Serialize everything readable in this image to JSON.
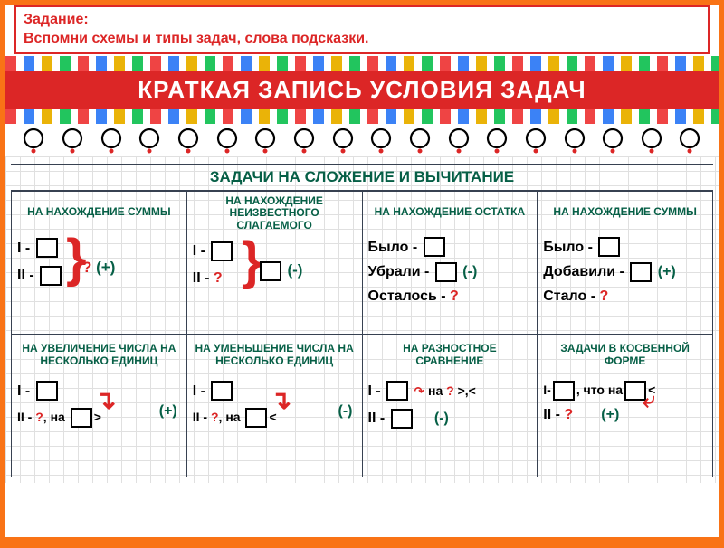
{
  "colors": {
    "red": "#dc2626",
    "green": "#065f46",
    "black": "#000",
    "orange": "#f97316"
  },
  "instruction": {
    "title": "Задание:",
    "text": "Вспомни схемы и типы задач, слова подсказки."
  },
  "poster_title": "КРАТКАЯ ЗАПИСЬ УСЛОВИЯ ЗАДАЧ",
  "section_title": "ЗАДАЧИ НА СЛОЖЕНИЕ И ВЫЧИТАНИЕ",
  "cells": [
    {
      "h": "НА НАХОЖДЕНИЕ СУММЫ",
      "l1": "I -",
      "l2": "II -",
      "brace_q": "?",
      "brace_op": "(+)"
    },
    {
      "h": "НА НАХОЖДЕНИЕ НЕИЗВЕСТНОГО СЛАГАЕМОГО",
      "l1": "I -",
      "l2": "II - ?",
      "brace_q": "",
      "brace_op": "(-)"
    },
    {
      "h": "НА НАХОЖДЕНИЕ ОСТАТКА",
      "r1": "Было -",
      "r2": "Убрали -",
      "r2op": "(-)",
      "r3": "Осталось - ?"
    },
    {
      "h": "НА НАХОЖДЕНИЕ СУММЫ",
      "r1": "Было -",
      "r2": "Добавили -",
      "r2op": "(+)",
      "r3": "Стало - ?"
    },
    {
      "h": "НА УВЕЛИЧЕНИЕ ЧИСЛА НА НЕСКОЛЬКО ЕДИНИЦ",
      "l1": "I -",
      "l2": "II - ?, на",
      "tail": ">",
      "op": "(+)"
    },
    {
      "h": "НА УМЕНЬШЕНИЕ ЧИСЛА НА НЕСКОЛЬКО ЕДИНИЦ",
      "l1": "I -",
      "l2": "II - ?, на",
      "tail": "<",
      "op": "(-)"
    },
    {
      "h": "НА РАЗНОСТНОЕ СРАВНЕНИЕ",
      "l1": "I -",
      "l2": "II -",
      "mid": "на ? >,<",
      "op": "(-)"
    },
    {
      "h": "ЗАДАЧИ В КОСВЕННОЙ ФОРМЕ",
      "l1a": "I-",
      "l1b": ", что на",
      "tail": "<",
      "l2": "II - ?",
      "op": "(+)"
    }
  ],
  "spiral_count": 18
}
